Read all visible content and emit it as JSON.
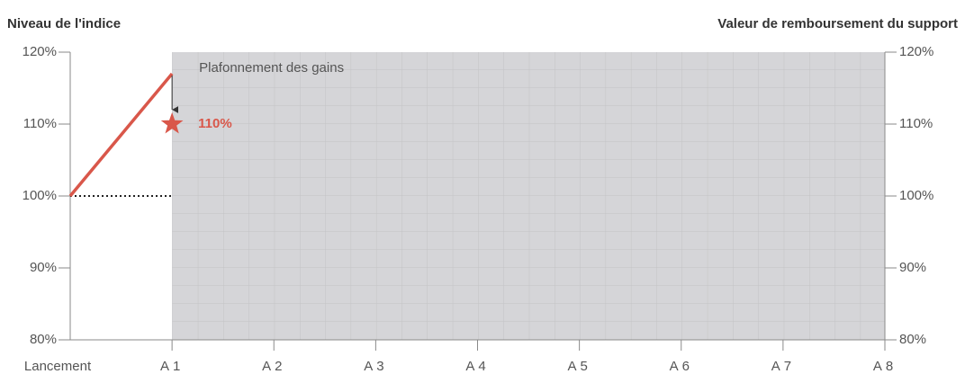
{
  "chart_data": {
    "type": "line",
    "y_title": "Niveau de l'indice",
    "y2_title": "Valeur de remboursement du support",
    "categories": [
      "Lancement",
      "A1",
      "A2",
      "A3",
      "A4",
      "A5",
      "A6",
      "A7",
      "A8"
    ],
    "values": [
      100,
      117,
      null,
      null,
      null,
      null,
      null,
      null,
      null
    ],
    "color": "#d9574a",
    "baseline": 100,
    "shaded_from": "A1",
    "cap_label": "Plafonnement des gains",
    "cap_value": 110,
    "cap_value_label": "110%",
    "ylim": [
      80,
      120
    ],
    "yticks": [
      {
        "value": 80,
        "label": "80%"
      },
      {
        "value": 90,
        "label": "90%"
      },
      {
        "value": 100,
        "label": "100%"
      },
      {
        "value": 110,
        "label": "110%"
      },
      {
        "value": 120,
        "label": "120%"
      }
    ],
    "y2lim": [
      80,
      120
    ],
    "y2ticks": [
      {
        "value": 80,
        "label": "80%"
      },
      {
        "value": 90,
        "label": "90%"
      },
      {
        "value": 100,
        "label": "100%"
      },
      {
        "value": 110,
        "label": "110%"
      },
      {
        "value": 120,
        "label": "120%"
      }
    ]
  }
}
